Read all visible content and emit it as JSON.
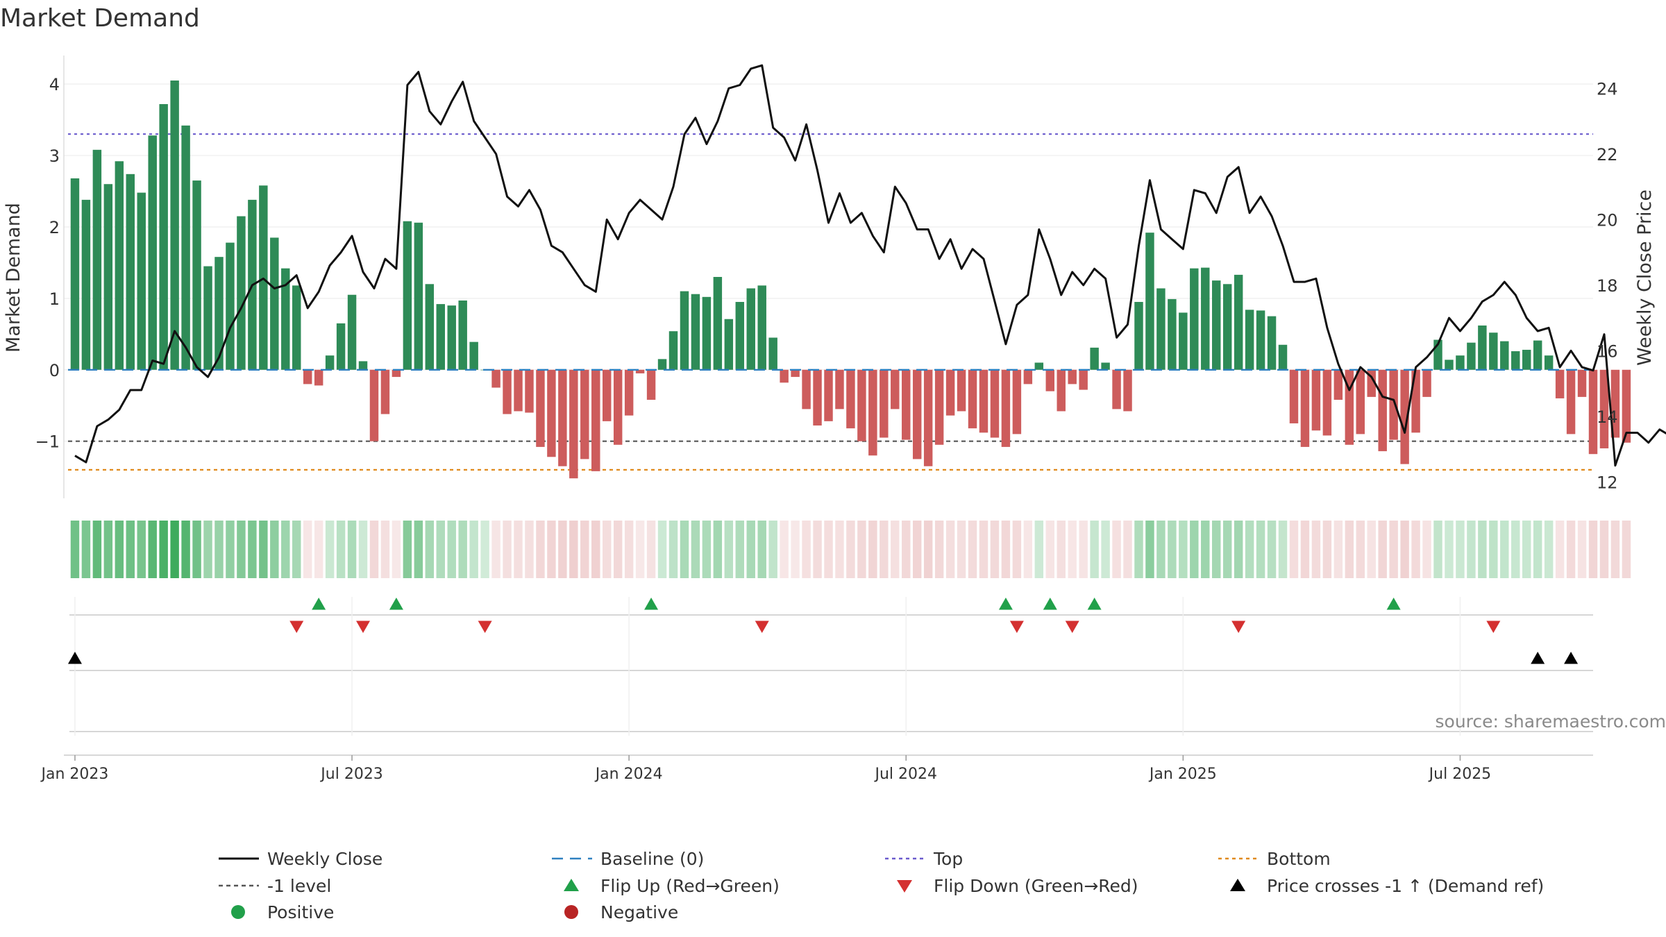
{
  "chart_data": {
    "type": "bar",
    "title": "Market Demand",
    "ylabel_left": "Market Demand",
    "ylabel_right": "Weekly Close Price",
    "source": "source: sharemaestro.com",
    "ylim_left": [
      -1.8,
      4.4
    ],
    "ylim_right": [
      11.5,
      25.0
    ],
    "yticks_left": [
      4,
      3,
      2,
      1,
      0,
      -1
    ],
    "yticks_left_labels": [
      "4",
      "3",
      "2",
      "1",
      "0",
      "−1"
    ],
    "yticks_right": [
      24,
      22,
      20,
      18,
      16,
      14,
      12
    ],
    "x_range": [
      -1,
      137
    ],
    "x_ticks": [
      {
        "index": 0,
        "label": "Jan 2023"
      },
      {
        "index": 25,
        "label": "Jul 2023"
      },
      {
        "index": 50,
        "label": "Jan 2024"
      },
      {
        "index": 75,
        "label": "Jul 2024"
      },
      {
        "index": 100,
        "label": "Jan 2025"
      },
      {
        "index": 125,
        "label": "Jul 2025"
      }
    ],
    "reference_lines": [
      {
        "name": "Top",
        "value": 3.3
      },
      {
        "name": "-1 level",
        "value": -1.0
      },
      {
        "name": "Bottom",
        "value": -1.4
      },
      {
        "name": "Baseline (0)",
        "value": 0
      }
    ],
    "series": [
      {
        "name": "Market Demand",
        "axis": "left",
        "type": "bar",
        "values": [
          2.68,
          2.38,
          3.08,
          2.6,
          2.92,
          2.74,
          2.48,
          3.28,
          3.72,
          4.05,
          3.42,
          2.65,
          1.45,
          1.58,
          1.78,
          2.15,
          2.38,
          2.58,
          1.85,
          1.42,
          1.18,
          -0.2,
          -0.22,
          0.2,
          0.65,
          1.05,
          0.12,
          -1.0,
          -0.62,
          -0.1,
          2.08,
          2.06,
          1.2,
          0.92,
          0.9,
          0.97,
          0.39,
          0.0,
          -0.25,
          -0.62,
          -0.58,
          -0.6,
          -1.08,
          -1.22,
          -1.35,
          -1.52,
          -1.25,
          -1.42,
          -0.72,
          -1.05,
          -0.64,
          -0.05,
          -0.42,
          0.15,
          0.54,
          1.1,
          1.06,
          1.02,
          1.3,
          0.71,
          0.95,
          1.14,
          1.18,
          0.45,
          -0.18,
          -0.1,
          -0.55,
          -0.78,
          -0.72,
          -0.55,
          -0.82,
          -1.0,
          -1.2,
          -0.95,
          -0.55,
          -0.98,
          -1.25,
          -1.35,
          -1.05,
          -0.64,
          -0.58,
          -0.82,
          -0.88,
          -0.95,
          -1.08,
          -0.9,
          -0.2,
          0.1,
          -0.3,
          -0.58,
          -0.2,
          -0.28,
          0.31,
          0.1,
          -0.55,
          -0.58,
          0.95,
          1.92,
          1.14,
          0.99,
          0.8,
          1.42,
          1.43,
          1.25,
          1.2,
          1.33,
          0.84,
          0.83,
          0.75,
          0.35,
          -0.75,
          -1.08,
          -0.85,
          -0.92,
          -0.42,
          -1.05,
          -0.9,
          -0.38,
          -1.14,
          -0.98,
          -1.32,
          -0.88,
          -0.38,
          0.42,
          0.14,
          0.2,
          0.38,
          0.62,
          0.52,
          0.4,
          0.26,
          0.28,
          0.41,
          0.2,
          -0.4,
          -0.9,
          -0.38,
          -1.18,
          -1.1,
          -0.95,
          -1.02
        ]
      },
      {
        "name": "Weekly Close",
        "axis": "right",
        "type": "line",
        "values": [
          12.8,
          12.6,
          13.7,
          13.9,
          14.2,
          14.8,
          14.8,
          15.7,
          15.6,
          16.6,
          16.1,
          15.5,
          15.2,
          15.8,
          16.7,
          17.3,
          18.0,
          18.2,
          17.9,
          18.0,
          18.3,
          17.3,
          17.8,
          18.6,
          19.0,
          19.5,
          18.4,
          17.9,
          18.8,
          18.5,
          24.1,
          24.5,
          23.3,
          22.9,
          23.6,
          24.2,
          23.0,
          22.5,
          22.0,
          20.7,
          20.4,
          20.9,
          20.3,
          19.2,
          19.0,
          18.5,
          18.0,
          17.8,
          20.0,
          19.4,
          20.2,
          20.6,
          20.3,
          20.0,
          21.0,
          22.6,
          23.1,
          22.3,
          23.0,
          24.0,
          24.1,
          24.6,
          24.7,
          22.8,
          22.5,
          21.8,
          22.9,
          21.5,
          19.9,
          20.8,
          19.9,
          20.2,
          19.5,
          19.0,
          21.0,
          20.5,
          19.7,
          19.7,
          18.8,
          19.4,
          18.5,
          19.1,
          18.8,
          17.5,
          16.2,
          17.4,
          17.7,
          19.7,
          18.8,
          17.7,
          18.4,
          18.0,
          18.5,
          18.2,
          16.4,
          16.8,
          19.2,
          21.2,
          19.7,
          19.4,
          19.1,
          20.9,
          20.8,
          20.2,
          21.3,
          21.6,
          20.2,
          20.7,
          20.1,
          19.2,
          18.1,
          18.1,
          18.2,
          16.7,
          15.6,
          14.8,
          15.5,
          15.2,
          14.6,
          14.5,
          13.5,
          15.5,
          15.8,
          16.2,
          17.0,
          16.6,
          17.0,
          17.5,
          17.7,
          18.1,
          17.7,
          17.0,
          16.6,
          16.7,
          15.5,
          16.0,
          15.5,
          15.4,
          16.5,
          12.5,
          13.5,
          13.5,
          13.2,
          13.6,
          13.4
        ]
      }
    ],
    "heat_strip": {
      "name": "Demand strength strip",
      "source_series": "Market Demand"
    },
    "signals": {
      "flip_up": [
        22,
        29,
        52,
        84,
        88,
        92,
        119
      ],
      "flip_down": [
        20,
        26,
        37,
        62,
        85,
        90,
        105,
        128
      ],
      "price_cross_up": [
        0,
        132,
        135
      ]
    },
    "legend": {
      "position": "bottom",
      "entries": [
        {
          "label": "Weekly Close",
          "kind": "line",
          "color": "#111111"
        },
        {
          "label": "Baseline (0)",
          "kind": "dashed",
          "color": "#2f80c0"
        },
        {
          "label": "Top",
          "kind": "dotted",
          "color": "#6a5acd"
        },
        {
          "label": "Bottom",
          "kind": "dotted",
          "color": "#e08a1c"
        },
        {
          "label": "-1 level",
          "kind": "dashed",
          "color": "#555555"
        },
        {
          "label": "Flip Up (Red→Green)",
          "kind": "triangle-up",
          "color": "#21a04a"
        },
        {
          "label": "Flip Down (Green→Red)",
          "kind": "triangle-down",
          "color": "#d43030"
        },
        {
          "label": "Price crosses -1 ↑ (Demand ref)",
          "kind": "triangle-up",
          "color": "#000000"
        },
        {
          "label": "Positive",
          "kind": "circle",
          "color": "#21a04a"
        },
        {
          "label": "Negative",
          "kind": "circle",
          "color": "#b82424"
        }
      ]
    },
    "colors": {
      "positive_bar": "#2e8b57",
      "negative_bar": "#cd5c5c",
      "price_line": "#111111"
    }
  }
}
